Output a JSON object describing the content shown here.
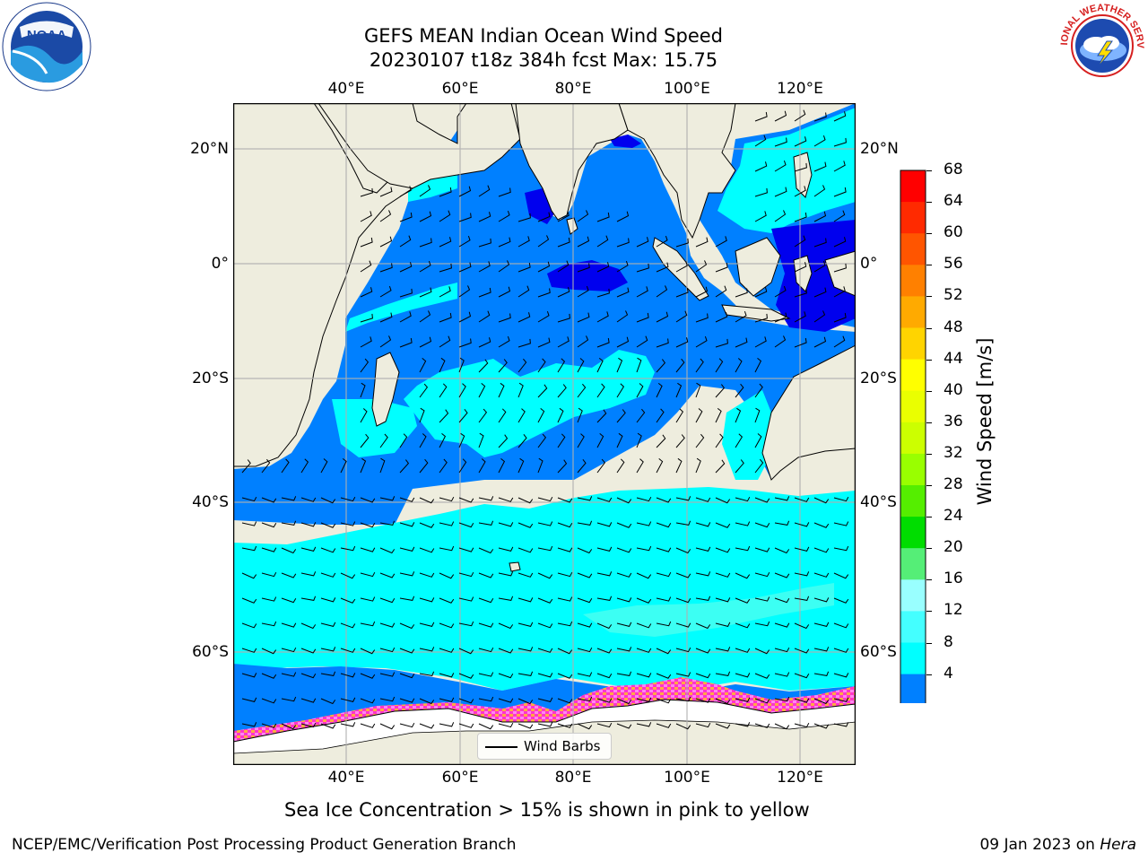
{
  "title_line1": "GEFS MEAN Indian Ocean Wind Speed",
  "title_line2": "20230107 t18z 384h fcst   Max: 15.75",
  "footer": {
    "sea_ice_note": "Sea Ice Concentration > 15% is shown in pink to yellow",
    "credit": "NCEP/EMC/Verification Post Processing Product Generation Branch",
    "date_prefix": "09 Jan 2023 on ",
    "machine": "Hera"
  },
  "logos": {
    "left": {
      "icon": "noaa-logo-icon",
      "text": "NOAA",
      "ring_text": "NATIONAL OCEANIC AND ATMOSPHERIC ADMINISTRATION · U.S. DEPARTMENT OF COMMERCE"
    },
    "right": {
      "icon": "nws-logo-icon",
      "ring_text": "NATIONAL WEATHER SERVICE"
    }
  },
  "map": {
    "lon_labels": [
      "40°E",
      "60°E",
      "80°E",
      "100°E",
      "120°E"
    ],
    "lat_labels_left": [
      "20°N",
      "0°",
      "20°S",
      "40°S",
      "60°S"
    ],
    "lat_labels_right": [
      "20°N",
      "0°",
      "20°S",
      "40°S",
      "60°S"
    ],
    "lon_range": [
      20,
      130
    ],
    "lat_range": [
      -70,
      28
    ],
    "grid": true,
    "legend_label": "Wind Barbs",
    "colors": {
      "land": "#eeedde",
      "wind_4_8": "#0080ff",
      "wind_0_4": "#0000ee",
      "wind_8_12": "#00ffff",
      "wind_12_16": "#40f0ff",
      "sea_ice": "#ff00ff",
      "ice_shelf": "#ffffff"
    }
  },
  "colorbar": {
    "title": "Wind Speed [m/s]",
    "ticks": [
      "68",
      "64",
      "60",
      "56",
      "52",
      "48",
      "44",
      "40",
      "36",
      "32",
      "28",
      "24",
      "20",
      "16",
      "12",
      "8",
      "4"
    ],
    "colors": [
      "#ff0000",
      "#ff2a00",
      "#ff5500",
      "#ff8000",
      "#ffaa00",
      "#ffd400",
      "#ffff00",
      "#eaff00",
      "#ccff00",
      "#99ff00",
      "#55ee00",
      "#00dd00",
      "#55ee77",
      "#99ffff",
      "#44ffff",
      "#00ffff",
      "#0080ff"
    ],
    "extend_color": "#0000ff"
  }
}
